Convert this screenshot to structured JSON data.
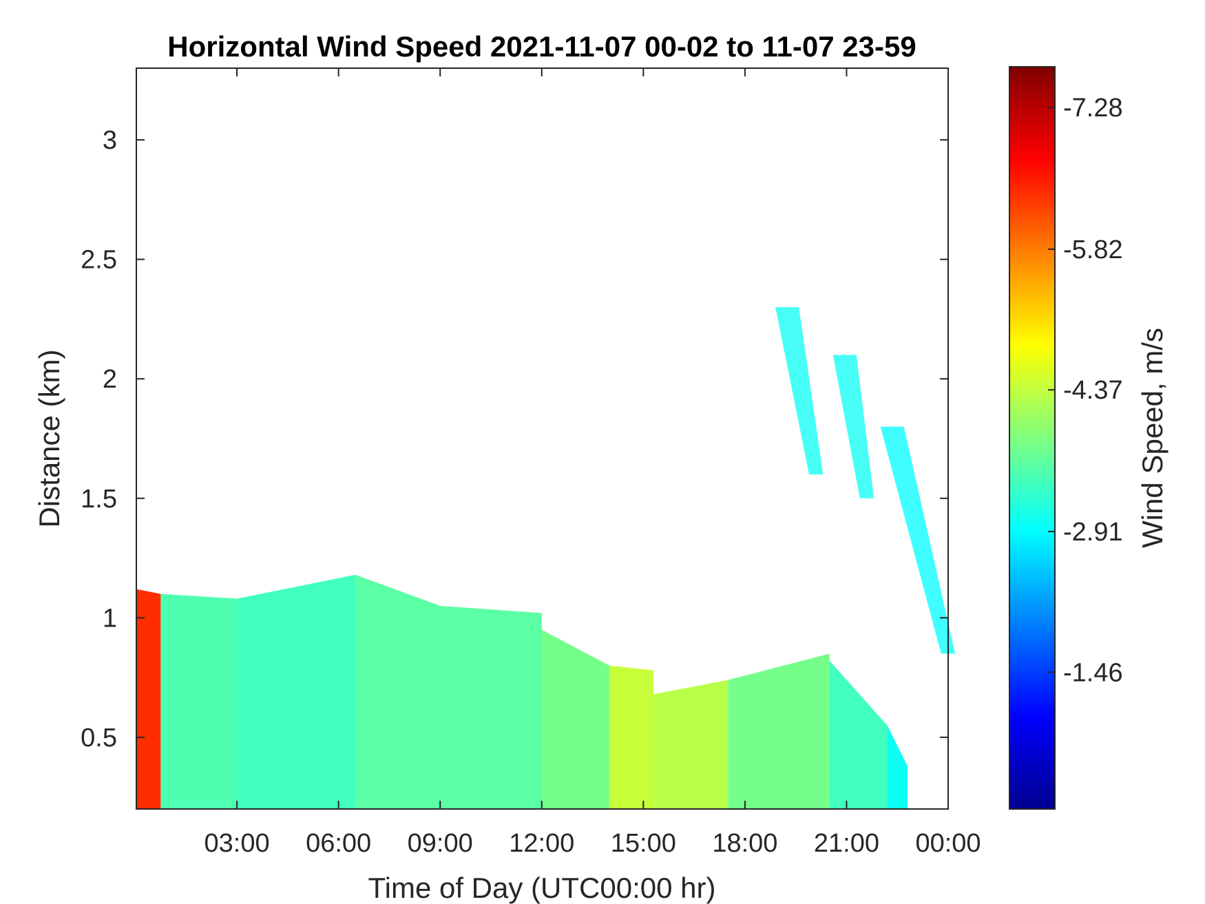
{
  "chart_data": {
    "type": "heatmap",
    "title": "Horizontal Wind Speed 2021-11-07 00-02 to 11-07 23-59",
    "xlabel": "Time of Day (UTC00:00 hr)",
    "ylabel": "Distance (km)",
    "colorbar_label": "Wind Speed, m/s",
    "x_unit": "hours",
    "xlim": [
      0.03,
      24
    ],
    "ylim": [
      0.2,
      3.3
    ],
    "xticks": [
      3,
      6,
      9,
      12,
      15,
      18,
      21,
      24
    ],
    "xtick_labels": [
      "03:00",
      "06:00",
      "09:00",
      "12:00",
      "15:00",
      "18:00",
      "21:00",
      "00:00"
    ],
    "yticks": [
      0.5,
      1,
      1.5,
      2,
      2.5,
      3
    ],
    "ytick_labels": [
      "0.5",
      "1",
      "1.5",
      "2",
      "2.5",
      "3"
    ],
    "colorbar_range": [
      -0.05,
      -7.7
    ],
    "colorbar_ticks": [
      -7.28,
      -5.82,
      -4.37,
      -2.91,
      -1.46
    ],
    "colorbar_tick_labels": [
      "-7.28",
      "-5.82",
      "-4.37",
      "-2.91",
      "-1.46"
    ],
    "colormap": "jet",
    "regions": [
      {
        "x_start": 0.03,
        "x_end": 0.75,
        "y_top_start": 1.12,
        "y_top_end": 1.1,
        "value": -6.4
      },
      {
        "x_start": 0.75,
        "x_end": 3.0,
        "y_top_start": 1.1,
        "y_top_end": 1.08,
        "value": -3.5
      },
      {
        "x_start": 3.0,
        "x_end": 6.5,
        "y_top_start": 1.08,
        "y_top_end": 1.18,
        "value": -3.4
      },
      {
        "x_start": 6.5,
        "x_end": 9.0,
        "y_top_start": 1.18,
        "y_top_end": 1.05,
        "value": -3.6
      },
      {
        "x_start": 9.0,
        "x_end": 12.0,
        "y_top_start": 1.05,
        "y_top_end": 1.02,
        "value": -3.6
      },
      {
        "x_start": 12.0,
        "x_end": 14.0,
        "y_top_start": 0.95,
        "y_top_end": 0.8,
        "value": -3.8
      },
      {
        "x_start": 14.0,
        "x_end": 15.3,
        "y_top_start": 0.8,
        "y_top_end": 0.78,
        "value": -4.4
      },
      {
        "x_start": 15.3,
        "x_end": 17.5,
        "y_top_start": 0.68,
        "y_top_end": 0.74,
        "value": -4.3
      },
      {
        "x_start": 17.5,
        "x_end": 20.5,
        "y_top_start": 0.74,
        "y_top_end": 0.85,
        "value": -3.8
      },
      {
        "x_start": 20.5,
        "x_end": 22.2,
        "y_top_start": 0.82,
        "y_top_end": 0.55,
        "value": -3.4
      },
      {
        "x_start": 22.2,
        "x_end": 22.8,
        "y_top_start": 0.55,
        "y_top_end": 0.38,
        "value": -3.0
      },
      {
        "x_start": 18.9,
        "x_end": 20.1,
        "y_top_start": 2.3,
        "y_top_end": 1.6,
        "value": -3.0
      },
      {
        "x_start": 20.6,
        "x_end": 21.6,
        "y_top_start": 2.1,
        "y_top_end": 1.5,
        "value": -3.0
      },
      {
        "x_start": 22.0,
        "x_end": 24.0,
        "y_top_start": 1.8,
        "y_top_end": 0.85,
        "value": -2.9
      }
    ]
  }
}
